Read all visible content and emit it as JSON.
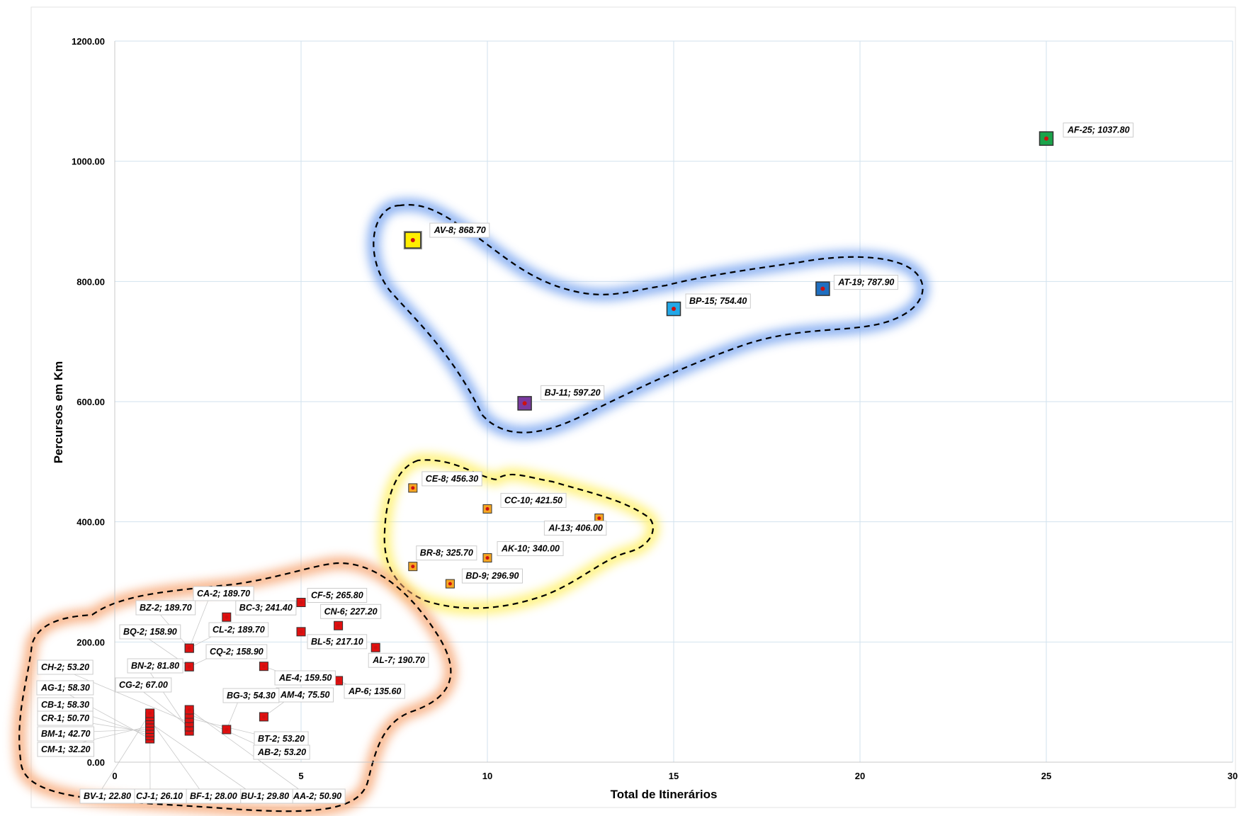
{
  "chart_data": {
    "type": "scatter",
    "title": "",
    "xlabel": "Total de Itinerários",
    "ylabel": "Percursos em Km",
    "xlim": [
      0,
      30
    ],
    "ylim": [
      0,
      1200
    ],
    "x_ticks": [
      "0",
      "5",
      "10",
      "15",
      "20",
      "25",
      "30"
    ],
    "y_ticks": [
      "0.00",
      "200.00",
      "400.00",
      "600.00",
      "800.00",
      "1000.00",
      "1200.00"
    ],
    "grid": "vertical-and-horizontal",
    "legend": "none",
    "clusters": [
      {
        "group": "blue",
        "color": "#7aa6f0",
        "members": [
          "AV-8",
          "BP-15",
          "AT-19",
          "BJ-11"
        ]
      },
      {
        "group": "yellow",
        "color": "#fff06a",
        "members": [
          "CE-8",
          "CC-10",
          "AI-13",
          "BR-8",
          "AK-10",
          "BD-9"
        ]
      },
      {
        "group": "orange",
        "color": "#f7a978",
        "members": "low itineraries"
      }
    ],
    "points": [
      {
        "label": "AF-25; 1037.80",
        "x": 25,
        "y": 1037.8,
        "color": "#1aa34a"
      },
      {
        "label": "AV-8; 868.70",
        "x": 8,
        "y": 868.7,
        "color": "#ffee00"
      },
      {
        "label": "AT-19; 787.90",
        "x": 19,
        "y": 787.9,
        "color": "#1f6fc0"
      },
      {
        "label": "BP-15; 754.40",
        "x": 15,
        "y": 754.4,
        "color": "#22a8e8"
      },
      {
        "label": "BJ-11; 597.20",
        "x": 11,
        "y": 597.2,
        "color": "#7a3aa0"
      },
      {
        "label": "CE-8; 456.30",
        "x": 8,
        "y": 456.3,
        "color": "#f5a623"
      },
      {
        "label": "CC-10; 421.50",
        "x": 10,
        "y": 421.5,
        "color": "#f5a623"
      },
      {
        "label": "AI-13; 406.00",
        "x": 13,
        "y": 406.0,
        "color": "#f5a623"
      },
      {
        "label": "AK-10; 340.00",
        "x": 10,
        "y": 340.0,
        "color": "#f5a623"
      },
      {
        "label": "BR-8; 325.70",
        "x": 8,
        "y": 325.7,
        "color": "#f5a623"
      },
      {
        "label": "BD-9; 296.90",
        "x": 9,
        "y": 296.9,
        "color": "#f5a623"
      },
      {
        "label": "CF-5; 265.80",
        "x": 5,
        "y": 265.8,
        "color": "#e01010"
      },
      {
        "label": "BC-3; 241.40",
        "x": 3,
        "y": 241.4,
        "color": "#e01010"
      },
      {
        "label": "CN-6; 227.20",
        "x": 6,
        "y": 227.2,
        "color": "#e01010"
      },
      {
        "label": "BL-5; 217.10",
        "x": 5,
        "y": 217.1,
        "color": "#e01010"
      },
      {
        "label": "AL-7; 190.70",
        "x": 7,
        "y": 190.7,
        "color": "#e01010"
      },
      {
        "label": "CA-2; 189.70",
        "x": 2,
        "y": 189.7,
        "color": "#e01010"
      },
      {
        "label": "BZ-2; 189.70",
        "x": 2,
        "y": 189.7,
        "color": "#e01010"
      },
      {
        "label": "CL-2; 189.70",
        "x": 2,
        "y": 189.7,
        "color": "#e01010"
      },
      {
        "label": "BQ-2; 158.90",
        "x": 2,
        "y": 158.9,
        "color": "#e01010"
      },
      {
        "label": "CQ-2; 158.90",
        "x": 2,
        "y": 158.9,
        "color": "#e01010"
      },
      {
        "label": "AE-4; 159.50",
        "x": 4,
        "y": 159.5,
        "color": "#e01010"
      },
      {
        "label": "AP-6; 135.60",
        "x": 6,
        "y": 135.6,
        "color": "#e01010"
      },
      {
        "label": "BN-2; 81.80",
        "x": 2,
        "y": 81.8,
        "color": "#e01010"
      },
      {
        "label": "AM-4; 75.50",
        "x": 4,
        "y": 75.5,
        "color": "#e01010"
      },
      {
        "label": "CG-2; 67.00",
        "x": 2,
        "y": 67.0,
        "color": "#e01010"
      },
      {
        "label": "BG-3; 54.30",
        "x": 3,
        "y": 54.3,
        "color": "#e01010"
      },
      {
        "label": "CH-2; 53.20",
        "x": 2,
        "y": 53.2,
        "color": "#e01010"
      },
      {
        "label": "BT-2; 53.20",
        "x": 2,
        "y": 53.2,
        "color": "#e01010"
      },
      {
        "label": "AB-2; 53.20",
        "x": 2,
        "y": 53.2,
        "color": "#e01010"
      },
      {
        "label": "AA-2; 50.90",
        "x": 2,
        "y": 50.9,
        "color": "#e01010"
      },
      {
        "label": "AG-1; 58.30",
        "x": 1,
        "y": 58.3,
        "color": "#e01010"
      },
      {
        "label": "CB-1; 58.30",
        "x": 1,
        "y": 58.3,
        "color": "#e01010"
      },
      {
        "label": "CR-1; 50.70",
        "x": 1,
        "y": 50.7,
        "color": "#e01010"
      },
      {
        "label": "BM-1; 42.70",
        "x": 1,
        "y": 42.7,
        "color": "#e01010"
      },
      {
        "label": "CM-1; 32.20",
        "x": 1,
        "y": 32.2,
        "color": "#e01010"
      },
      {
        "label": "BU-1; 29.80",
        "x": 1,
        "y": 29.8,
        "color": "#e01010"
      },
      {
        "label": "BF-1; 28.00",
        "x": 1,
        "y": 28.0,
        "color": "#e01010"
      },
      {
        "label": "CJ-1; 26.10",
        "x": 1,
        "y": 26.1,
        "color": "#e01010"
      },
      {
        "label": "BV-1; 22.80",
        "x": 1,
        "y": 22.8,
        "color": "#e01010"
      }
    ]
  }
}
